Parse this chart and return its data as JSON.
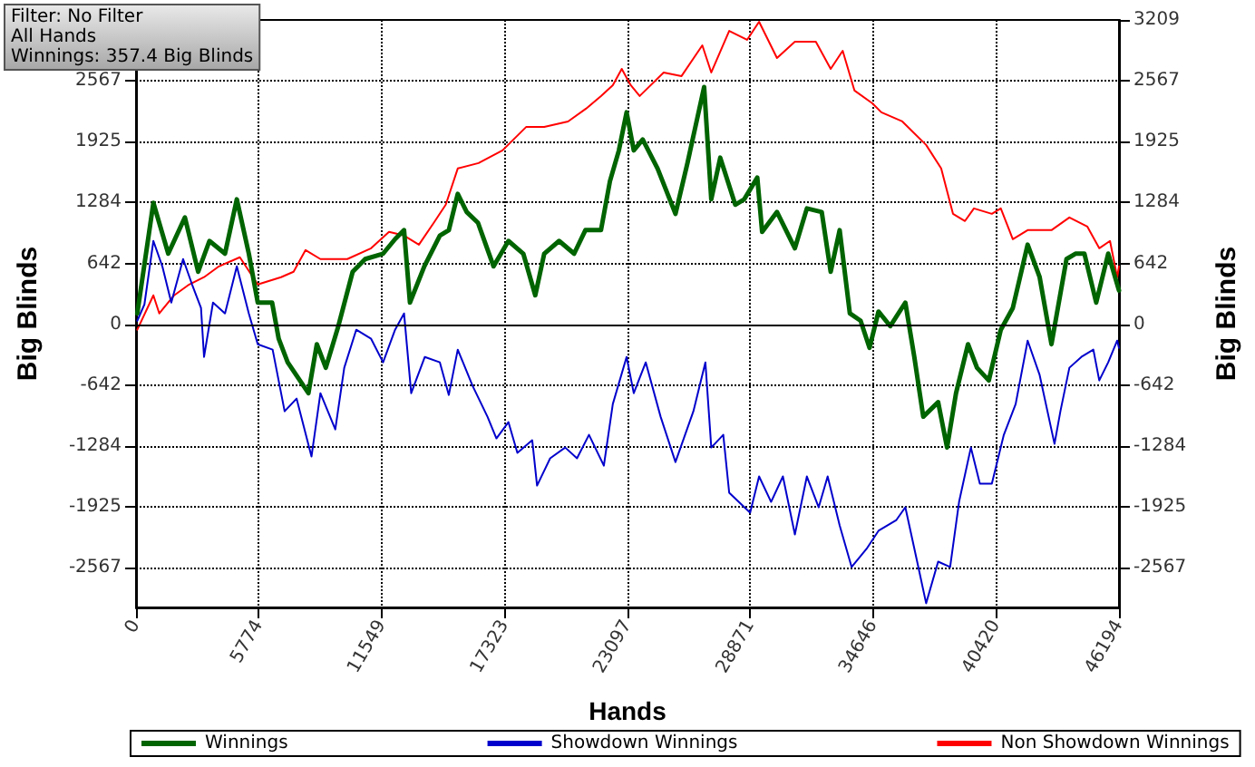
{
  "chart_data": {
    "type": "line",
    "xlabel": "Hands",
    "ylabel": "Big Blinds",
    "y2label": "Big Blinds",
    "annotations": [
      "Filter: No Filter\nAll Hands\nWinnings: 357.4 Big Blinds"
    ],
    "xlim": [
      0,
      46194
    ],
    "xticks": [
      0,
      5774,
      11549,
      17323,
      23097,
      28871,
      34646,
      40420,
      46194
    ],
    "ylim": [
      -2985,
      3209
    ],
    "yticks": [
      -2567,
      -1925,
      -1284,
      -642,
      0,
      642,
      1284,
      1925,
      2567
    ],
    "y2lim": [
      -2985,
      3209
    ],
    "y2ticks": [
      -2567,
      -1925,
      -1284,
      -642,
      0,
      642,
      1284,
      1925,
      2567,
      3209
    ],
    "grid": true,
    "legend": "bottom",
    "marker": "none",
    "line_style": "solid",
    "ref_lines": [
      {
        "axis": "y",
        "value": 0,
        "color": "#000000"
      }
    ],
    "series": [
      {
        "name": "Winnings",
        "color": "#006400",
        "x": [
          60,
          816,
          1515,
          2297,
          2920,
          3450,
          4182,
          4737,
          5301,
          5722,
          6395,
          6706,
          7127,
          8103,
          8498,
          8919,
          9508,
          10181,
          10770,
          11611,
          12175,
          12596,
          12873,
          13547,
          14279,
          14700,
          15120,
          15541,
          16071,
          16803,
          17501,
          18200,
          18763,
          19184,
          19882,
          20589,
          21119,
          21851,
          22272,
          22693,
          23054,
          23391,
          23812,
          24510,
          25351,
          25915,
          26698,
          27034,
          27455,
          28162,
          28583,
          29197,
          29424,
          30122,
          30963,
          31527,
          32225,
          32646,
          33067,
          33546,
          34051,
          34472,
          34892,
          35448,
          36154,
          36575,
          36996,
          37695,
          38115,
          38536,
          39100,
          39521,
          40076,
          40640,
          41204,
          41902,
          42466,
          43021,
          43728,
          44148,
          44569,
          45124,
          45688,
          46194
        ],
        "values": [
          115,
          1280,
          745,
          1127,
          554,
          879,
          745,
          1318,
          745,
          229,
          229,
          -153,
          -401,
          -726,
          -210,
          -458,
          -19,
          554,
          688,
          745,
          898,
          993,
          229,
          611,
          936,
          993,
          1375,
          1184,
          1070,
          611,
          879,
          745,
          306,
          745,
          879,
          745,
          993,
          993,
          1509,
          1834,
          2235,
          1834,
          1948,
          1643,
          1165,
          1700,
          2502,
          1318,
          1757,
          1261,
          1318,
          1547,
          974,
          1184,
          802,
          1222,
          1184,
          554,
          993,
          115,
          38,
          -248,
          134,
          -19,
          229,
          -344,
          -974,
          -821,
          -1299,
          -726,
          -210,
          -458,
          -592,
          -57,
          172,
          840,
          497,
          -210,
          688,
          745,
          745,
          229,
          745,
          357
        ]
      },
      {
        "name": "Showdown Winnings",
        "color": "#0000cc",
        "x": [
          60,
          395,
          816,
          1237,
          1658,
          2213,
          2634,
          3054,
          3197,
          3618,
          4182,
          4737,
          5301,
          5722,
          6420,
          6984,
          7547,
          8246,
          8666,
          9365,
          9786,
          10349,
          11048,
          11611,
          12175,
          12596,
          12932,
          13572,
          14279,
          14700,
          15120,
          15818,
          16517,
          16937,
          17501,
          17922,
          18620,
          18847,
          19462,
          20169,
          20724,
          21287,
          21986,
          22407,
          23054,
          23391,
          23955,
          24653,
          25351,
          26193,
          26757,
          27034,
          27598,
          27876,
          28860,
          29281,
          29845,
          30400,
          30963,
          31527,
          32082,
          32503,
          33067,
          33630,
          34329,
          34892,
          35734,
          36154,
          36710,
          37131,
          37695,
          38259,
          38679,
          39235,
          39656,
          40219,
          40783,
          41339,
          41902,
          42466,
          43164,
          43442,
          43863,
          44426,
          44990,
          45267,
          45688,
          46110,
          46194
        ],
        "values": [
          38,
          210,
          879,
          611,
          229,
          688,
          420,
          172,
          -344,
          229,
          115,
          611,
          115,
          -210,
          -267,
          -917,
          -783,
          -1394,
          -726,
          -1108,
          -458,
          -57,
          -153,
          -401,
          -57,
          115,
          -726,
          -344,
          -401,
          -745,
          -267,
          -649,
          -974,
          -1203,
          -1031,
          -1356,
          -1222,
          -1700,
          -1413,
          -1299,
          -1413,
          -1165,
          -1490,
          -840,
          -344,
          -726,
          -401,
          -974,
          -1452,
          -917,
          -401,
          -1299,
          -1165,
          -1776,
          -1986,
          -1604,
          -1872,
          -1604,
          -2216,
          -1604,
          -1929,
          -1604,
          -2120,
          -2559,
          -2368,
          -2177,
          -2063,
          -1929,
          -2502,
          -2941,
          -2502,
          -2559,
          -1872,
          -1299,
          -1681,
          -1681,
          -1165,
          -840,
          -172,
          -535,
          -1261,
          -917,
          -458,
          -344,
          -267,
          -592,
          -401,
          -172,
          -248
        ]
      },
      {
        "name": "Non Showdown Winnings",
        "color": "#ff0000",
        "x": [
          60,
          816,
          1094,
          1792,
          2499,
          3197,
          3896,
          4880,
          5722,
          6815,
          7404,
          7968,
          8666,
          9929,
          11048,
          11889,
          12596,
          13294,
          13993,
          14556,
          15120,
          16096,
          17223,
          18343,
          19184,
          20303,
          21144,
          21851,
          22407,
          22827,
          23248,
          23669,
          24796,
          25637,
          26613,
          27034,
          27876,
          28717,
          29281,
          30122,
          30963,
          31948,
          32646,
          33210,
          33765,
          34606,
          35027,
          36012,
          37131,
          37838,
          38393,
          38957,
          39378,
          40219,
          40640,
          41204,
          41902,
          43021,
          43863,
          44704,
          45267,
          45772,
          46110,
          46194
        ],
        "values": [
          -57,
          306,
          115,
          306,
          420,
          497,
          611,
          707,
          420,
          497,
          554,
          783,
          688,
          688,
          802,
          974,
          936,
          840,
          1070,
          1261,
          1643,
          1700,
          1834,
          2082,
          2082,
          2139,
          2273,
          2407,
          2521,
          2693,
          2521,
          2407,
          2655,
          2617,
          2941,
          2655,
          3094,
          2999,
          3190,
          2808,
          2980,
          2980,
          2693,
          2884,
          2464,
          2330,
          2235,
          2139,
          1891,
          1643,
          1165,
          1089,
          1222,
          1165,
          1222,
          898,
          993,
          993,
          1127,
          1031,
          802,
          879,
          497,
          611
        ]
      }
    ]
  }
}
